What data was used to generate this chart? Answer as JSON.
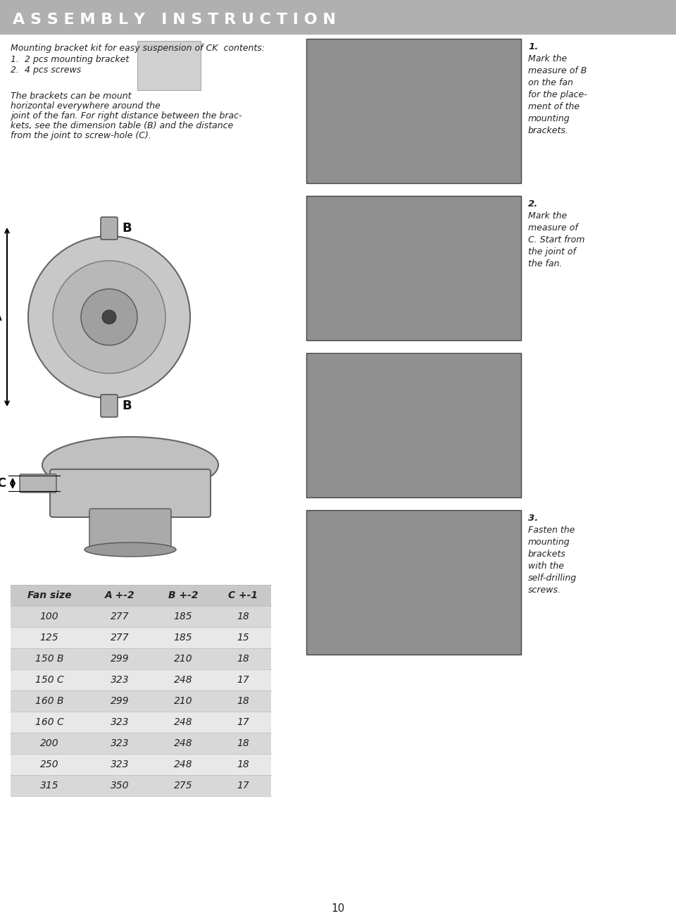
{
  "header_text": "A S S E M B L Y   I N S T R U C T I O N",
  "header_bg": "#b0b0b0",
  "header_text_color": "#ffffff",
  "page_bg": "#ffffff",
  "body_text_color": "#222222",
  "intro_text": "Mounting bracket kit for easy suspension of CK  contents:",
  "list_items": [
    "1.  2 pcs mounting bracket",
    "2.  4 pcs screws"
  ],
  "body_paragraph_lines": [
    "The brackets can be mount",
    "horizontal everywhere around the",
    "joint of the fan. For right distance between the brac-",
    "kets, see the dimension table (B) and the distance",
    "from the joint to screw-hole (C)."
  ],
  "step1_num": "1.",
  "step1_text": "Mark the\nmeasure of B\non the fan\nfor the place-\nment of the\nmounting\nbrackets.",
  "step2_num": "2.",
  "step2_text": "Mark the\nmeasure of\nC. Start from\nthe joint of\nthe fan.",
  "step3_num": "3.",
  "step3_text": "Fasten the\nmounting\nbrackets\nwith the\nself-drilling\nscrews.",
  "table_header": [
    "Fan size",
    "A +-2",
    "B +-2",
    "C +-1"
  ],
  "table_data": [
    [
      "100",
      "277",
      "185",
      "18"
    ],
    [
      "125",
      "277",
      "185",
      "15"
    ],
    [
      "150 B",
      "299",
      "210",
      "18"
    ],
    [
      "150 C",
      "323",
      "248",
      "17"
    ],
    [
      "160 B",
      "299",
      "210",
      "18"
    ],
    [
      "160 C",
      "323",
      "248",
      "17"
    ],
    [
      "200",
      "323",
      "248",
      "18"
    ],
    [
      "250",
      "323",
      "248",
      "18"
    ],
    [
      "315",
      "350",
      "275",
      "17"
    ]
  ],
  "table_header_bg": "#c8c8c8",
  "table_row_bg_odd": "#e8e8e8",
  "table_row_bg_even": "#d8d8d8",
  "footer_text": "10",
  "photo_bg": "#909090"
}
